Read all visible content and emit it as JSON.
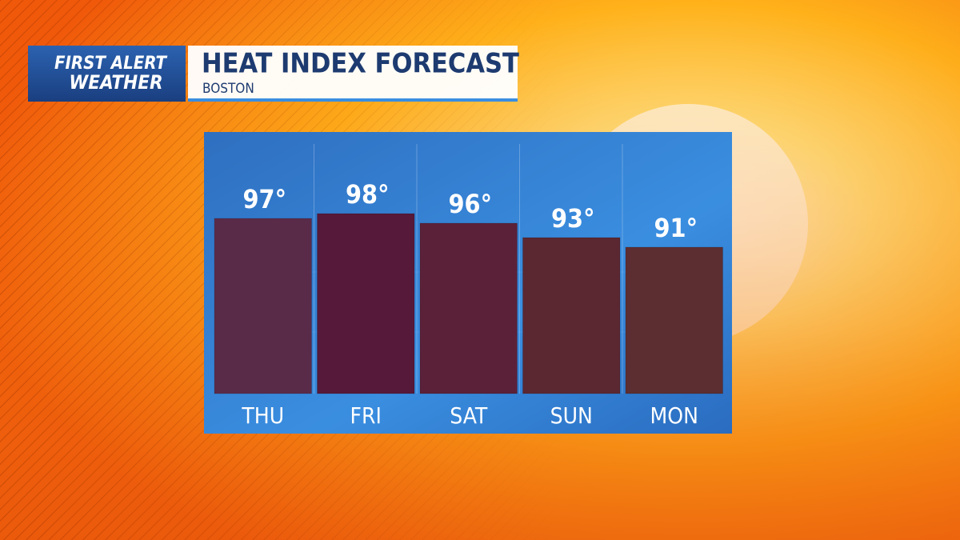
{
  "chart_data": {
    "type": "bar",
    "logo": [
      "FIRST ALERT",
      "WEATHER"
    ],
    "title": "HEAT INDEX FORECAST",
    "subtitle": "BOSTON",
    "categories": [
      "THU",
      "FRI",
      "SAT",
      "SUN",
      "MON"
    ],
    "values": [
      97,
      98,
      96,
      93,
      91
    ],
    "value_labels": [
      "97°",
      "98°",
      "96°",
      "93°",
      "91°"
    ],
    "colors": [
      "#5a2b49",
      "#56193a",
      "#5b2139",
      "#5b2832",
      "#5d2e31"
    ]
  }
}
